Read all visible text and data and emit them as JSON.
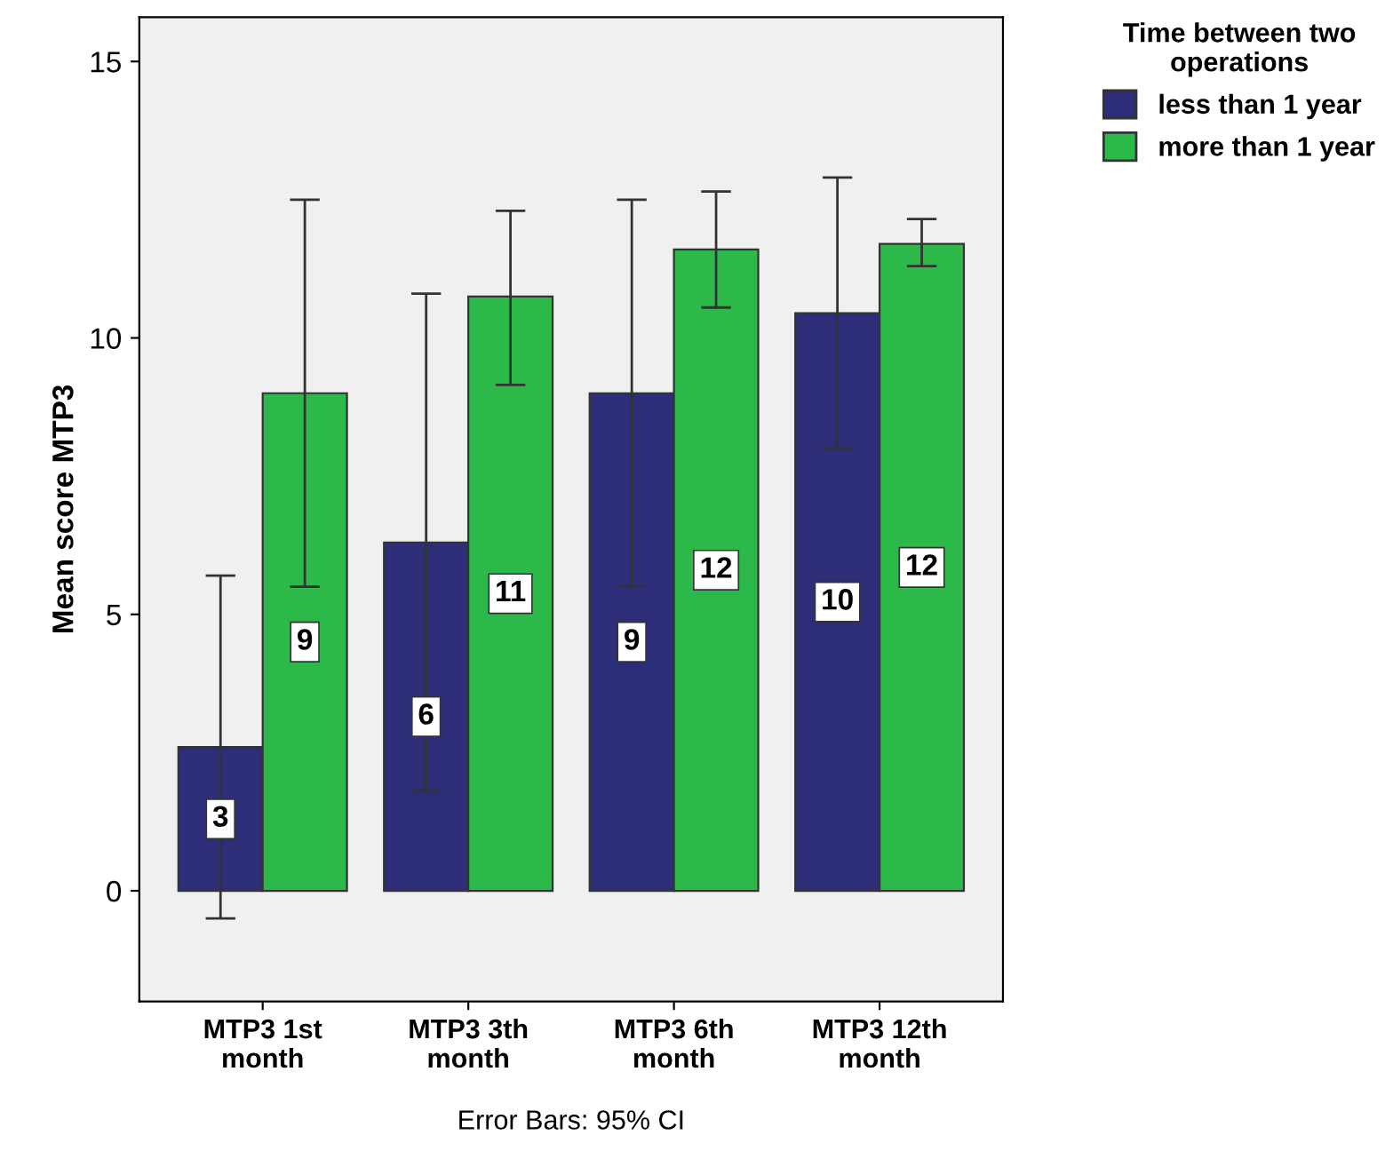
{
  "chart_data": {
    "type": "bar",
    "ylabel": "Mean score MTP3",
    "legend_title": "Time between two\noperations",
    "legend": "top right",
    "categories": [
      "MTP3 1st\nmonth",
      "MTP3 3th\nmonth",
      "MTP3 6th\nmonth",
      "MTP3 12th\nmonth"
    ],
    "series": [
      {
        "name": "less than 1 year",
        "color": "#2e2e78",
        "values": [
          2.6,
          6.3,
          9.0,
          10.45
        ],
        "errors": [
          [
            -0.5,
            5.7
          ],
          [
            1.8,
            10.8
          ],
          [
            5.5,
            12.5
          ],
          [
            8.0,
            12.9
          ]
        ],
        "value_labels": [
          "3",
          "6",
          "9",
          "10"
        ]
      },
      {
        "name": "more than 1 year",
        "color": "#2db84a",
        "values": [
          9.0,
          10.75,
          11.6,
          11.7
        ],
        "errors": [
          [
            5.5,
            12.5
          ],
          [
            9.15,
            12.3
          ],
          [
            10.55,
            12.65
          ],
          [
            11.3,
            12.15
          ]
        ],
        "value_labels": [
          "9",
          "11",
          "12",
          "12"
        ]
      }
    ],
    "ylim": [
      -2,
      15.8
    ],
    "yticks": [
      0,
      5,
      10,
      15
    ],
    "grid": false,
    "annotations": [
      "Error Bars: 95% CI"
    ]
  }
}
